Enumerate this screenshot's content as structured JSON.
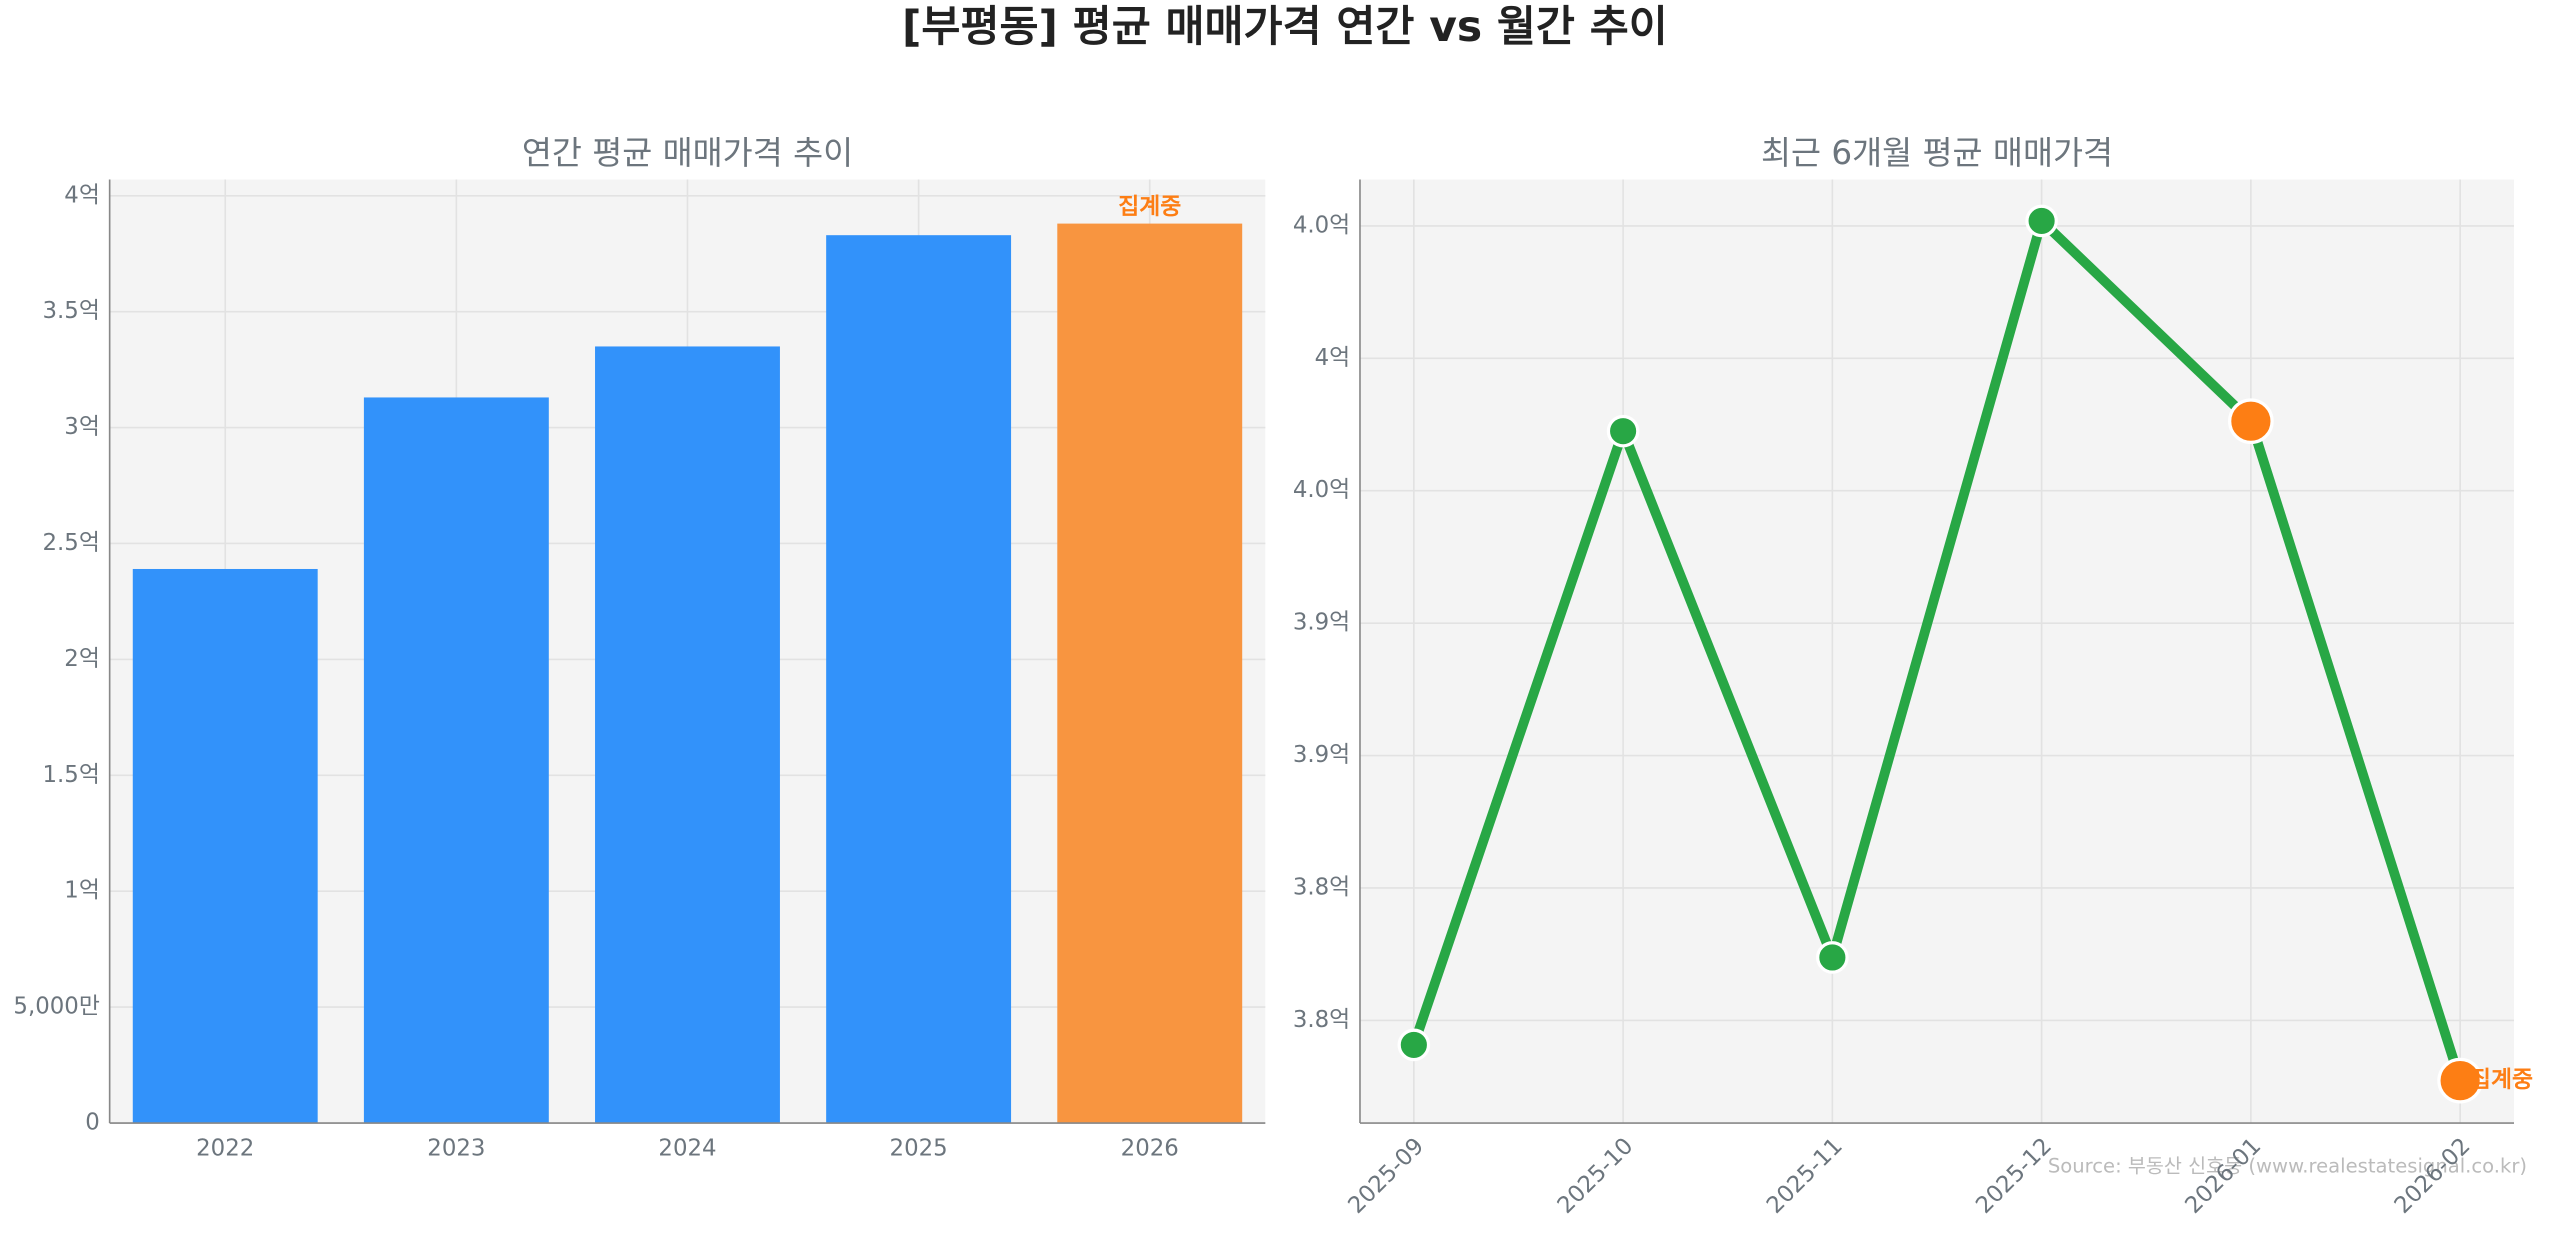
{
  "title": "[부평동] 평균 매매가격 연간 vs 월간 추이",
  "source": "Source: 부동산 신호등 (www.realestatesignal.co.kr)",
  "chart_data": [
    {
      "type": "bar",
      "title": "연간 평균 매매가격 추이",
      "categories": [
        "2022",
        "2023",
        "2024",
        "2025",
        "2026"
      ],
      "values": [
        2.39,
        3.13,
        3.35,
        3.83,
        3.88
      ],
      "colors": [
        "#3292fa",
        "#3292fa",
        "#3292fa",
        "#3292fa",
        "#f89540"
      ],
      "annotation": "집계중",
      "ylim": [
        0,
        4.07
      ],
      "yticks": [
        0,
        {
          "value": 0.5,
          "label": "5,000만"
        },
        {
          "value": 1,
          "label": "1억"
        },
        {
          "value": 1.5,
          "label": "1.5억"
        },
        {
          "value": 2,
          "label": "2억"
        },
        {
          "value": 2.5,
          "label": "2.5억"
        },
        {
          "value": 3,
          "label": "3억"
        },
        {
          "value": 3.5,
          "label": "3.5억"
        },
        {
          "value": 4,
          "label": "4억"
        }
      ],
      "grid": true
    },
    {
      "type": "line",
      "title": "최근 6개월 평균 매매가격",
      "categories": [
        "2025-09",
        "2025-10",
        "2025-11",
        "2025-12",
        "2026-01",
        "2026-02"
      ],
      "series": [
        {
          "color": "#28a745",
          "values": [
            3.7926,
            3.978,
            3.819,
            4.0415,
            3.981,
            3.7818
          ],
          "marker_colors": [
            "#28a745",
            "#28a745",
            "#28a745",
            "#28a745",
            "#fd7e14",
            "#fd7e14"
          ]
        }
      ],
      "annotation": "집계중",
      "ylim": [
        3.769,
        4.054
      ],
      "yticks": [
        {
          "value": 3.8,
          "label": "3.8억"
        },
        {
          "value": 3.84,
          "label": "3.8억"
        },
        {
          "value": 3.88,
          "label": "3.9억"
        },
        {
          "value": 3.92,
          "label": "3.9억"
        },
        {
          "value": 3.96,
          "label": "4.0억"
        },
        {
          "value": 4.0,
          "label": "4억"
        },
        {
          "value": 4.04,
          "label": "4.0억"
        }
      ],
      "grid": true
    }
  ]
}
